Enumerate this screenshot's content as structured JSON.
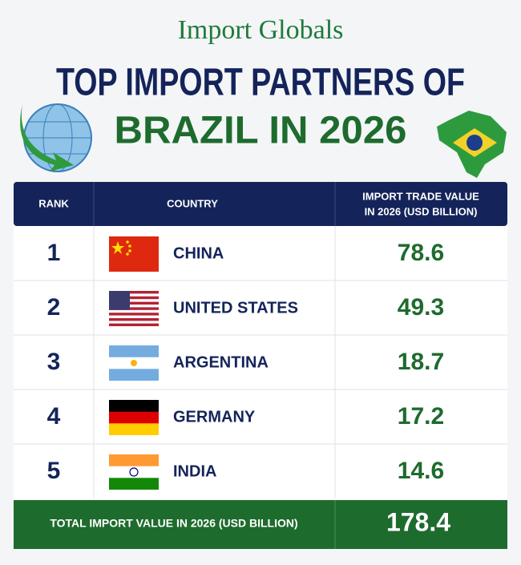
{
  "brand": "Import Globals",
  "title": {
    "line1": "TOP IMPORT PARTNERS OF",
    "line2": "BRAZIL IN 2026"
  },
  "table": {
    "header": [
      "RANK",
      "COUNTRY",
      "IMPORT TRADE VALUE",
      "IN 2026 (USD BILLION)"
    ],
    "rows": [
      [
        1,
        "CHINA",
        78.6
      ],
      [
        2,
        "UNITED STATES",
        49.3
      ],
      [
        3,
        "ARGENTINA",
        18.7
      ],
      [
        4,
        "GERMANY",
        17.2
      ],
      [
        5,
        "INDIA",
        14.6
      ]
    ],
    "total": {
      "label": "TOTAL IMPORT VALUE IN 2026 (USD BILLION)",
      "value": 178.4
    }
  }
}
